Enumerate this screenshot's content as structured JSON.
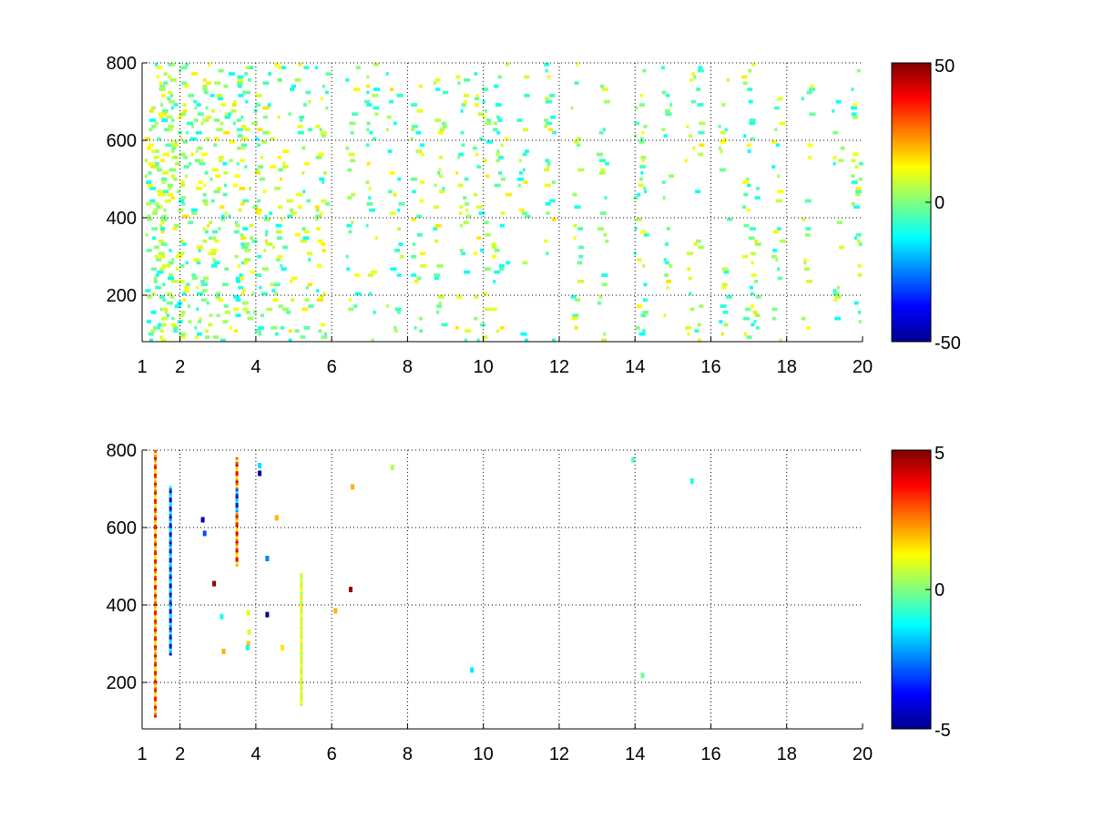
{
  "chart_data": [
    {
      "type": "heatmap",
      "title": "",
      "xlabel": "",
      "ylabel": "",
      "xlim": [
        1,
        20
      ],
      "ylim": [
        80,
        800
      ],
      "x_ticks": [
        "1",
        "2",
        "4",
        "6",
        "8",
        "10",
        "12",
        "14",
        "16",
        "18",
        "20"
      ],
      "x_tick_values": [
        1,
        2,
        4,
        6,
        8,
        10,
        12,
        14,
        16,
        18,
        20
      ],
      "y_ticks": [
        "200",
        "400",
        "600",
        "800"
      ],
      "y_tick_values": [
        200,
        400,
        600,
        800
      ],
      "grid": true,
      "colormap": "jet",
      "colorbar": {
        "min": -50,
        "max": 50,
        "ticks": [
          "50",
          "0",
          "-50"
        ],
        "tick_values": [
          50,
          0,
          -50
        ]
      },
      "background": "#ffffff",
      "description_seed": 11,
      "columns": [
        {
          "x": 1.3,
          "density": 0.75,
          "spread": 10
        },
        {
          "x": 1.55,
          "density": 0.7,
          "spread": 10
        },
        {
          "x": 1.85,
          "density": 0.6,
          "spread": 8
        },
        {
          "x": 2.2,
          "density": 0.5,
          "spread": 8
        },
        {
          "x": 2.6,
          "density": 0.55,
          "spread": 8
        },
        {
          "x": 3.0,
          "density": 0.55,
          "spread": 8
        },
        {
          "x": 3.5,
          "density": 0.6,
          "spread": 10
        },
        {
          "x": 3.9,
          "density": 0.55,
          "spread": 14
        },
        {
          "x": 4.3,
          "density": 0.5,
          "spread": 14
        },
        {
          "x": 4.7,
          "density": 0.4,
          "spread": 10
        },
        {
          "x": 5.2,
          "density": 0.45,
          "spread": 8
        },
        {
          "x": 5.7,
          "density": 0.35,
          "spread": 6
        },
        {
          "x": 6.5,
          "density": 0.35,
          "spread": 6
        },
        {
          "x": 7.0,
          "density": 0.3,
          "spread": 6
        },
        {
          "x": 7.6,
          "density": 0.35,
          "spread": 8
        },
        {
          "x": 8.2,
          "density": 0.3,
          "spread": 6
        },
        {
          "x": 8.8,
          "density": 0.3,
          "spread": 6
        },
        {
          "x": 9.4,
          "density": 0.3,
          "spread": 6
        },
        {
          "x": 9.9,
          "density": 0.45,
          "spread": 8
        },
        {
          "x": 10.4,
          "density": 0.35,
          "spread": 8
        },
        {
          "x": 11.0,
          "density": 0.2,
          "spread": 5
        },
        {
          "x": 11.7,
          "density": 0.3,
          "spread": 5
        },
        {
          "x": 12.4,
          "density": 0.22,
          "spread": 5
        },
        {
          "x": 13.1,
          "density": 0.2,
          "spread": 5
        },
        {
          "x": 14.1,
          "density": 0.35,
          "spread": 6
        },
        {
          "x": 14.8,
          "density": 0.25,
          "spread": 5
        },
        {
          "x": 15.5,
          "density": 0.4,
          "spread": 8
        },
        {
          "x": 16.3,
          "density": 0.25,
          "spread": 5
        },
        {
          "x": 17.0,
          "density": 0.45,
          "spread": 8
        },
        {
          "x": 17.7,
          "density": 0.25,
          "spread": 5
        },
        {
          "x": 18.5,
          "density": 0.2,
          "spread": 5
        },
        {
          "x": 19.3,
          "density": 0.2,
          "spread": 5
        },
        {
          "x": 19.8,
          "density": 0.3,
          "spread": 5
        }
      ]
    },
    {
      "type": "heatmap",
      "title": "",
      "xlabel": "",
      "ylabel": "",
      "xlim": [
        1,
        20
      ],
      "ylim": [
        80,
        800
      ],
      "x_ticks": [
        "1",
        "2",
        "4",
        "6",
        "8",
        "10",
        "12",
        "14",
        "16",
        "18",
        "20"
      ],
      "x_tick_values": [
        1,
        2,
        4,
        6,
        8,
        10,
        12,
        14,
        16,
        18,
        20
      ],
      "y_ticks": [
        "200",
        "400",
        "600",
        "800"
      ],
      "y_tick_values": [
        200,
        400,
        600,
        800
      ],
      "grid": true,
      "colormap": "jet",
      "colorbar": {
        "min": -5,
        "max": 5,
        "ticks": [
          "5",
          "0",
          "-5"
        ],
        "tick_values": [
          5,
          0,
          -5
        ]
      },
      "background": "#ffffff",
      "streaks": [
        {
          "x": 1.35,
          "y0": 110,
          "y1": 800,
          "value": 4.2
        },
        {
          "x": 1.75,
          "y0": 270,
          "y1": 710,
          "value": -4.5
        },
        {
          "x": 3.5,
          "y0": 500,
          "y1": 780,
          "value": 4.5
        },
        {
          "x": 3.5,
          "y0": 640,
          "y1": 700,
          "value": -4.8
        },
        {
          "x": 5.2,
          "y0": 140,
          "y1": 480,
          "value": 1.5
        }
      ],
      "spots": [
        {
          "x": 2.6,
          "y": 620,
          "value": -4.5
        },
        {
          "x": 2.65,
          "y": 585,
          "value": -3.0
        },
        {
          "x": 2.9,
          "y": 455,
          "value": 4.8
        },
        {
          "x": 3.1,
          "y": 370,
          "value": -1.0
        },
        {
          "x": 3.15,
          "y": 280,
          "value": 2.0
        },
        {
          "x": 3.8,
          "y": 380,
          "value": 1.0
        },
        {
          "x": 3.8,
          "y": 300,
          "value": 1.8
        },
        {
          "x": 3.82,
          "y": 330,
          "value": 0.8
        },
        {
          "x": 3.78,
          "y": 290,
          "value": -1.2
        },
        {
          "x": 4.1,
          "y": 760,
          "value": -1.5
        },
        {
          "x": 4.1,
          "y": 740,
          "value": -4.8
        },
        {
          "x": 4.3,
          "y": 520,
          "value": -2.5
        },
        {
          "x": 4.3,
          "y": 375,
          "value": -4.8
        },
        {
          "x": 4.55,
          "y": 625,
          "value": 2.0
        },
        {
          "x": 4.7,
          "y": 290,
          "value": 1.5
        },
        {
          "x": 6.1,
          "y": 385,
          "value": 2.0
        },
        {
          "x": 6.5,
          "y": 440,
          "value": 4.8
        },
        {
          "x": 6.55,
          "y": 705,
          "value": 2.0
        },
        {
          "x": 7.6,
          "y": 755,
          "value": 0.5
        },
        {
          "x": 9.7,
          "y": 232,
          "value": -1.5
        },
        {
          "x": 13.95,
          "y": 775,
          "value": -0.5
        },
        {
          "x": 14.2,
          "y": 218,
          "value": -0.2
        },
        {
          "x": 15.5,
          "y": 720,
          "value": -1.0
        }
      ]
    }
  ]
}
